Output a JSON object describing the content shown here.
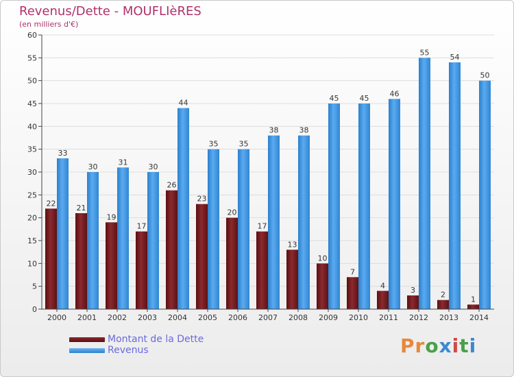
{
  "title": "Revenus/Dette - MOUFLIèRES",
  "subtitle": "(en milliers d'€)",
  "logo": {
    "text": "Proxiti",
    "colors": [
      "#e8883a",
      "#e8883a",
      "#4aa04a",
      "#3a8ad0",
      "#d04848",
      "#4aa04a",
      "#3a8ad0"
    ]
  },
  "chart_data": {
    "type": "bar",
    "categories": [
      "2000",
      "2001",
      "2002",
      "2003",
      "2004",
      "2005",
      "2006",
      "2007",
      "2008",
      "2009",
      "2010",
      "2011",
      "2012",
      "2013",
      "2014"
    ],
    "series": [
      {
        "name": "Montant de la Dette",
        "color": "#7a1c20",
        "values": [
          22,
          21,
          19,
          17,
          26,
          23,
          20,
          17,
          13,
          10,
          7,
          4,
          3,
          2,
          1
        ]
      },
      {
        "name": "Revenus",
        "color": "#3d97e0",
        "values": [
          33,
          30,
          31,
          30,
          44,
          35,
          35,
          38,
          38,
          45,
          45,
          46,
          55,
          54,
          50
        ]
      }
    ],
    "ylim": [
      0,
      60
    ],
    "yticks": [
      0,
      5,
      10,
      15,
      20,
      25,
      30,
      35,
      40,
      45,
      50,
      55,
      60
    ],
    "grid": true,
    "legend": "bottom-left"
  }
}
